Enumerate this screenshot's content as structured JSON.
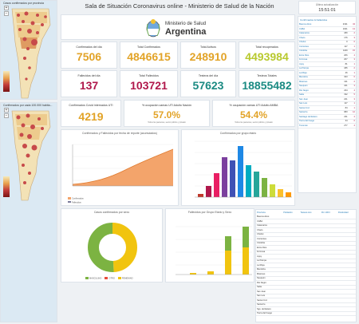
{
  "header": {
    "title": "Sala de Situación Coronavirus online - Ministerio de Salud de la Nación",
    "ministry_line1": "Ministerio de Salud",
    "ministry_line2": "Argentina",
    "update_label": "Última actualización",
    "update_time": "15:51:01"
  },
  "maps": {
    "map1_title": "Casos confirmados por provincia",
    "map2_title": "Confirmados por cada 100.000 habita...",
    "zoom_in": "+",
    "zoom_out": "−"
  },
  "kpis": {
    "row1": [
      {
        "label": "Confirmados del día",
        "value": "7506",
        "color": "#e2a327"
      },
      {
        "label": "Total Confirmados",
        "value": "4846615",
        "color": "#e2a327"
      },
      {
        "label": "Total Activos",
        "value": "248910",
        "color": "#e2a327"
      },
      {
        "label": "Total recuperados",
        "value": "4493984",
        "color": "#b8c92e"
      }
    ],
    "row2": [
      {
        "label": "Fallecidos del día",
        "value": "137",
        "color": "#b0174b"
      },
      {
        "label": "Total Fallecidos",
        "value": "103721",
        "color": "#b0174b"
      },
      {
        "label": "Testeos del día",
        "value": "57623",
        "color": "#1a8a82"
      },
      {
        "label": "Testeos Totales",
        "value": "18855482",
        "color": "#1a8a82"
      }
    ],
    "row3": [
      {
        "label": "Confirmados Covid internados UTI",
        "value": "4219",
        "color": "#e2a327"
      },
      {
        "label": "% ocupación camas UTI Adulto Nación",
        "value": "57.0%",
        "color": "#e2a327",
        "sub": "Todos los pacientes, sector público y privado"
      },
      {
        "label": "% ocupación camas UTI Adulto AMBA",
        "value": "54.4%",
        "color": "#e2a327",
        "sub": "Todos los pacientes, sector público y privado"
      }
    ]
  },
  "charts": {
    "line": {
      "title": "Confirmados y Fallecidos por fecha de reporte (acumulados)",
      "legend": [
        "Confirmados",
        "Fallecidos"
      ]
    },
    "age_bar": {
      "title": "Confirmados por grupo etario"
    },
    "donut": {
      "title": "Casos confirmados por sexo",
      "legend": [
        "MASCULINO",
        "OTRO",
        "FEMENINO"
      ]
    },
    "stack": {
      "title": "Fallecidos por Grupo Etario y Sexo"
    }
  },
  "province_table": {
    "header": "Confirmados & Fallecidos",
    "rows": [
      {
        "name": "Buenos Aires",
        "a": "2191",
        "b": "34"
      },
      {
        "name": "CABA",
        "a": "1021",
        "b": "13"
      },
      {
        "name": "Catamarca",
        "a": "180",
        "b": "2"
      },
      {
        "name": "Chaco",
        "a": "176",
        "b": "3"
      },
      {
        "name": "Chubut",
        "a": "0",
        "b": "0"
      },
      {
        "name": "Corrientes",
        "a": "117",
        "b": "1"
      },
      {
        "name": "Córdoba",
        "a": "1169",
        "b": "15"
      },
      {
        "name": "Entre Ríos",
        "a": "206",
        "b": "4"
      },
      {
        "name": "Formosa",
        "a": "207",
        "b": "3"
      },
      {
        "name": "Jujuy",
        "a": "81",
        "b": "1"
      },
      {
        "name": "La Pampa",
        "a": "186",
        "b": "2"
      },
      {
        "name": "La Rioja",
        "a": "46",
        "b": "1"
      },
      {
        "name": "Mendoza",
        "a": "323",
        "b": "6"
      },
      {
        "name": "Misiones",
        "a": "131",
        "b": "2"
      },
      {
        "name": "Neuquén",
        "a": "161",
        "b": "3"
      },
      {
        "name": "Río Negro",
        "a": "234",
        "b": "4"
      },
      {
        "name": "Salta",
        "a": "192",
        "b": "5"
      },
      {
        "name": "San Juan",
        "a": "221",
        "b": "3"
      },
      {
        "name": "San Luis",
        "a": "117",
        "b": "1"
      },
      {
        "name": "Santa Cruz",
        "a": "84",
        "b": "1"
      },
      {
        "name": "Santa Fe",
        "a": "683",
        "b": "12"
      },
      {
        "name": "Santiago del Estero",
        "a": "231",
        "b": "4"
      },
      {
        "name": "Tierra del Fuego",
        "a": "34",
        "b": "0"
      },
      {
        "name": "Tucumán",
        "a": "277",
        "b": "4"
      }
    ]
  },
  "bottom_table": {
    "headers": [
      "Provincia",
      "Población",
      "Testeos Acc.",
      "Por 100 h",
      "Positividad"
    ],
    "rows": [
      "Buenos Aires",
      "CABA",
      "Catamarca",
      "Chaco",
      "Chubut",
      "Corrientes",
      "Córdoba",
      "Entre Ríos",
      "Formosa",
      "Jujuy",
      "La Pampa",
      "La Rioja",
      "Mendoza",
      "Misiones",
      "Neuquén",
      "Río Negro",
      "Salta",
      "San Juan",
      "San Luis",
      "Santa Cruz",
      "Santa Fe",
      "Sgo. del Estero",
      "Tierra del Fuego"
    ]
  }
}
